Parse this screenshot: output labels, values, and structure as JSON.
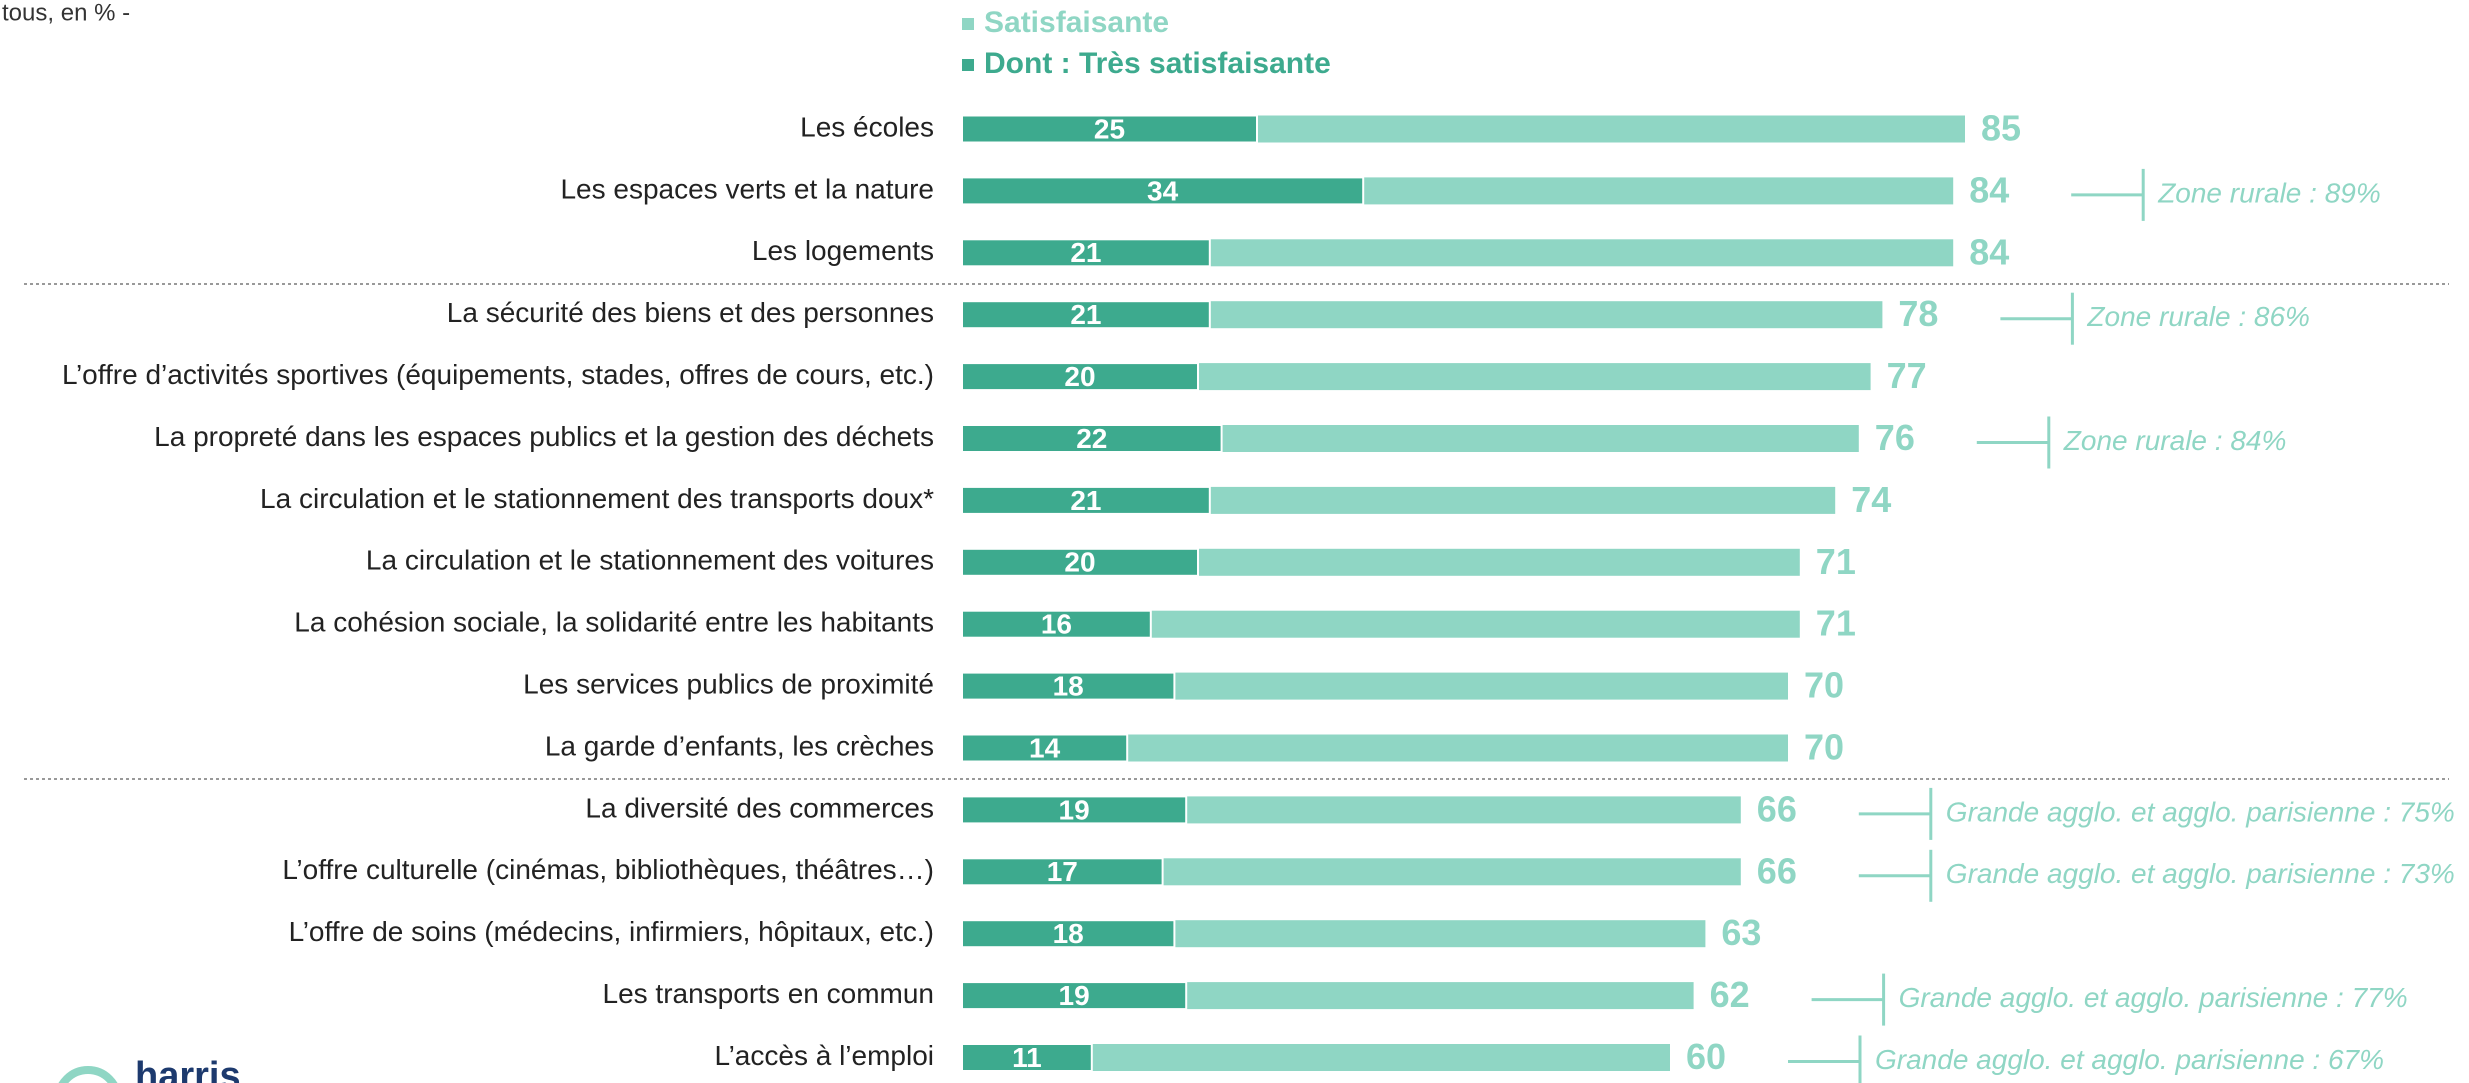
{
  "chart_data": {
    "type": "bar",
    "orientation": "horizontal",
    "subtitle": "à tous, en % -",
    "logo": "harris",
    "categories": [
      "Les écoles",
      "Les espaces verts et la nature",
      "Les logements",
      "La sécurité des biens et des personnes",
      "L’offre d’activités sportives (équipements, stades, offres de cours, etc.)",
      "La propreté dans les espaces publics et la gestion des déchets",
      "La circulation et le stationnement des transports doux*",
      "La circulation et le stationnement des voitures",
      "La cohésion sociale, la solidarité entre les habitants",
      "Les services publics de proximité",
      "La garde d’enfants, les crèches",
      "La diversité des commerces",
      "L’offre culturelle (cinémas, bibliothèques, théâtres…)",
      "L’offre de soins (médecins, infirmiers, hôpitaux, etc.)",
      "Les transports en commun",
      "L’accès à l’emploi"
    ],
    "series": [
      {
        "name": "Satisfaisante",
        "color": "#8fd6c4",
        "values": [
          85,
          84,
          84,
          78,
          77,
          76,
          74,
          71,
          71,
          70,
          70,
          66,
          66,
          63,
          62,
          60
        ]
      },
      {
        "name": "Dont : Très satisfaisante",
        "color": "#3daa8e",
        "values": [
          25,
          34,
          21,
          21,
          20,
          22,
          21,
          20,
          16,
          18,
          14,
          19,
          17,
          18,
          19,
          11
        ]
      }
    ],
    "annotations": [
      null,
      "Zone rurale : 89%",
      null,
      "Zone rurale : 86%",
      null,
      "Zone rurale : 84%",
      null,
      null,
      null,
      null,
      null,
      "Grande agglo. et agglo. parisienne : 75%",
      "Grande agglo. et agglo. parisienne : 73%",
      null,
      "Grande agglo. et agglo. parisienne : 77%",
      "Grande agglo. et agglo. parisienne : 67%"
    ],
    "xlim": [
      0,
      100
    ]
  }
}
